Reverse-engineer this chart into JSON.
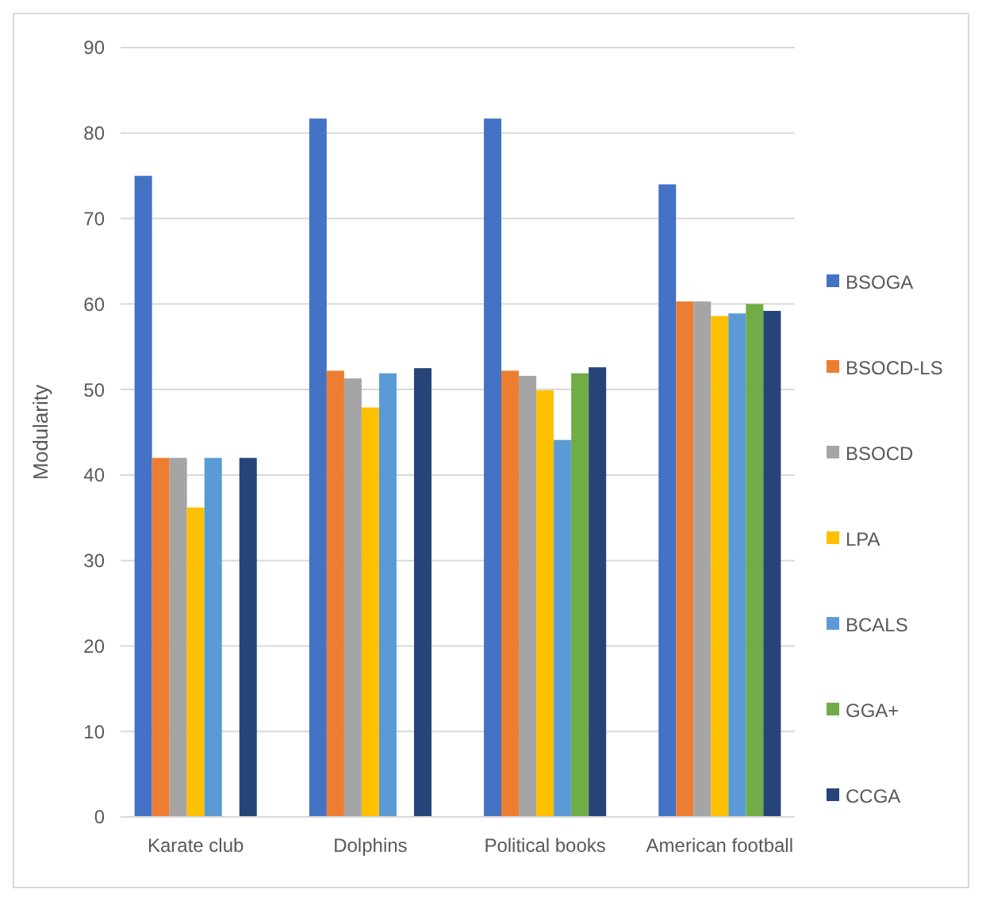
{
  "chart_data": {
    "type": "bar",
    "ylabel": "Modularity",
    "categories": [
      "Karate club",
      "Dolphins",
      "Political books",
      "American football"
    ],
    "series": [
      {
        "name": "BSOGA",
        "color": "#4472c4",
        "values": [
          75,
          81.7,
          81.7,
          74
        ]
      },
      {
        "name": "BSOCD-LS",
        "color": "#ed7d31",
        "values": [
          42,
          52.2,
          52.2,
          60.3
        ]
      },
      {
        "name": "BSOCD",
        "color": "#a5a5a5",
        "values": [
          42,
          51.3,
          51.6,
          60.3
        ]
      },
      {
        "name": "LPA",
        "color": "#ffc000",
        "values": [
          36.2,
          47.9,
          49.9,
          58.6
        ]
      },
      {
        "name": "BCALS",
        "color": "#5b9bd5",
        "values": [
          42,
          51.9,
          44.1,
          58.9
        ]
      },
      {
        "name": "GGA+",
        "color": "#70ad47",
        "values": [
          null,
          null,
          51.9,
          60
        ]
      },
      {
        "name": "CCGA",
        "color": "#264478",
        "values": [
          42,
          52.5,
          52.6,
          59.2
        ]
      }
    ],
    "ylim": [
      0,
      90
    ],
    "yticks": [
      0,
      10,
      20,
      30,
      40,
      50,
      60,
      70,
      80,
      90
    ],
    "grid": "y",
    "legend": "right"
  }
}
